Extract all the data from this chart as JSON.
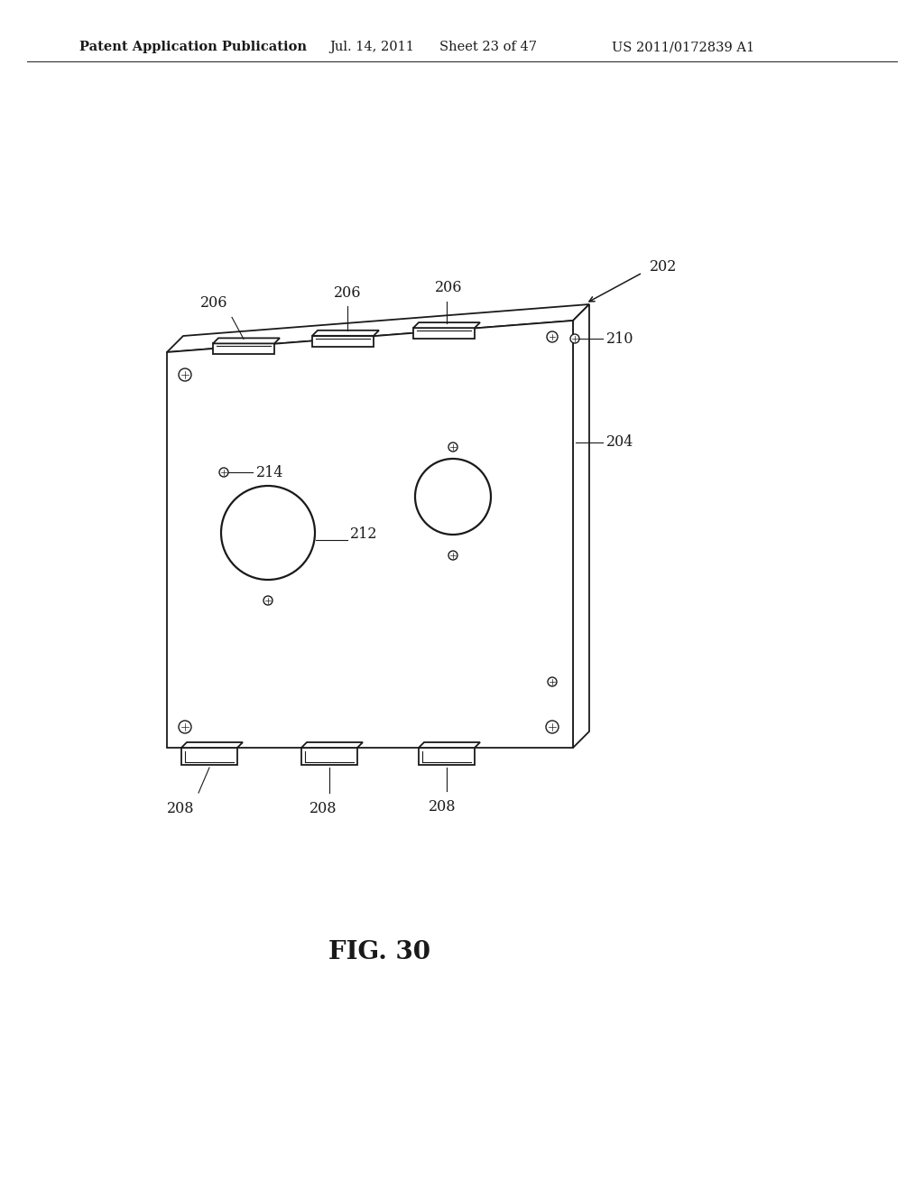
{
  "bg_color": "#ffffff",
  "title_header": "Patent Application Publication",
  "date_header": "Jul. 14, 2011",
  "sheet_header": "Sheet 23 of 47",
  "patent_header": "US 2011/0172839 A1",
  "fig_label": "FIG. 30",
  "header_fontsize": 10.5,
  "fig_label_fontsize": 20,
  "line_color": "#1a1a1a",
  "lw_main": 1.3,
  "lw_thin": 0.8
}
